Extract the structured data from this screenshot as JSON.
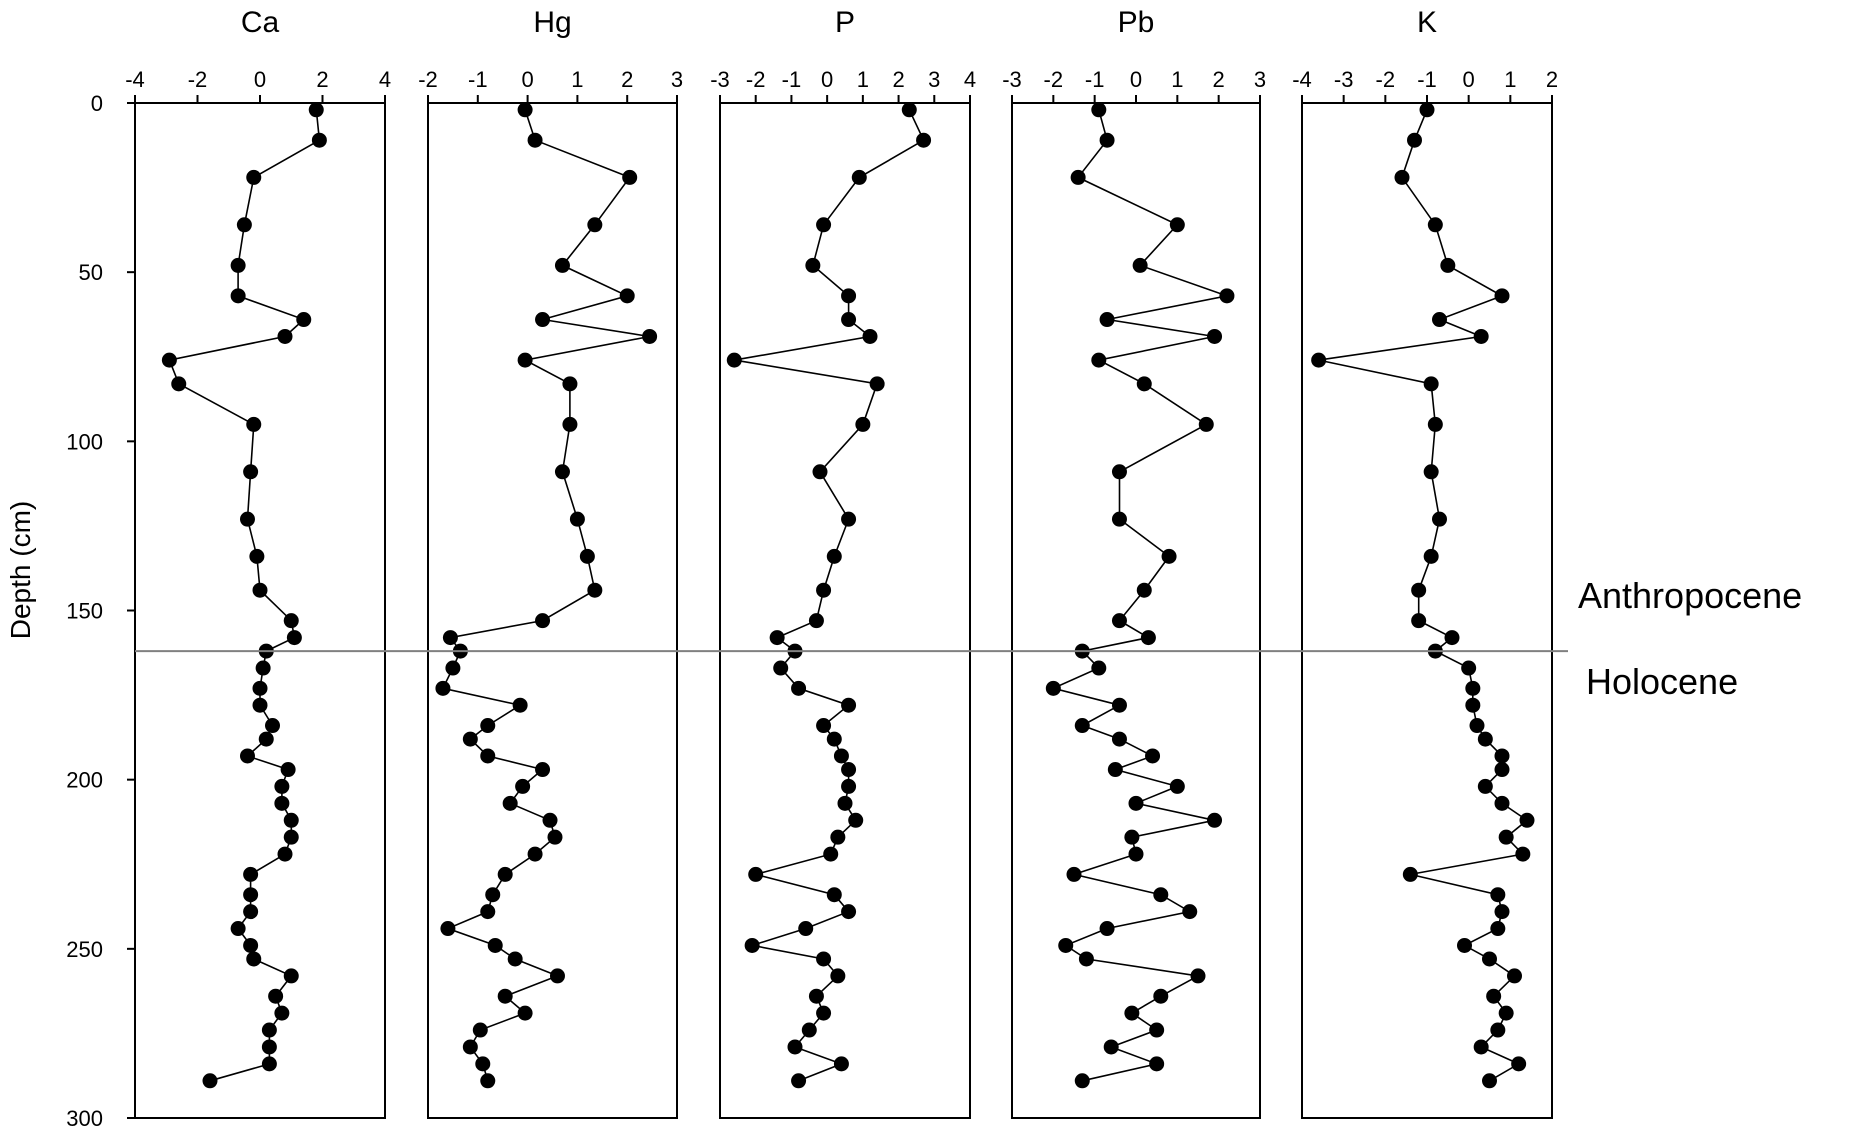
{
  "chart_data": {
    "type": "line",
    "ylabel": "Depth (cm)",
    "ylim": [
      0,
      300
    ],
    "y_ticks": [
      0,
      50,
      100,
      150,
      200,
      250,
      300
    ],
    "y_inverted": true,
    "depths": [
      2,
      11,
      22,
      36,
      48,
      57,
      64,
      69,
      76,
      83,
      95,
      109,
      123,
      134,
      144,
      153,
      158,
      162,
      167,
      173,
      178,
      184,
      188,
      193,
      197,
      202,
      207,
      212,
      217,
      222,
      228,
      234,
      239,
      244,
      249,
      253,
      258,
      264,
      269,
      274,
      279,
      284,
      289
    ],
    "annotations": {
      "boundary_depth": 162,
      "above": "Anthropocene",
      "below": "Holocene"
    },
    "panels": [
      {
        "title": "Ca",
        "xlim": [
          -4,
          4
        ],
        "x_ticks": [
          "-4",
          "-2",
          "0",
          "2",
          "4"
        ],
        "x_tick_values": [
          -4,
          -2,
          0,
          2,
          4
        ],
        "points": [
          [
            1.8,
            2
          ],
          [
            1.9,
            11
          ],
          [
            -0.2,
            22
          ],
          [
            -0.5,
            36
          ],
          [
            -0.7,
            48
          ],
          [
            -0.7,
            57
          ],
          [
            1.4,
            64
          ],
          [
            0.8,
            69
          ],
          [
            -2.9,
            76
          ],
          [
            -2.6,
            83
          ],
          [
            -0.2,
            95
          ],
          [
            -0.3,
            109
          ],
          [
            -0.4,
            123
          ],
          [
            -0.1,
            134
          ],
          [
            0.0,
            144
          ],
          [
            1.0,
            153
          ],
          [
            1.1,
            158
          ],
          [
            0.2,
            162
          ],
          [
            0.1,
            167
          ],
          [
            0.0,
            173
          ],
          [
            0.0,
            178
          ],
          [
            0.4,
            184
          ],
          [
            0.2,
            188
          ],
          [
            -0.4,
            193
          ],
          [
            0.9,
            197
          ],
          [
            0.7,
            202
          ],
          [
            0.7,
            207
          ],
          [
            1.0,
            212
          ],
          [
            1.0,
            217
          ],
          [
            0.8,
            222
          ],
          [
            -0.3,
            228
          ],
          [
            -0.3,
            234
          ],
          [
            -0.3,
            239
          ],
          [
            -0.7,
            244
          ],
          [
            -0.3,
            249
          ],
          [
            -0.2,
            253
          ],
          [
            1.0,
            258
          ],
          [
            0.5,
            264
          ],
          [
            0.7,
            269
          ],
          [
            0.3,
            274
          ],
          [
            0.3,
            279
          ],
          [
            0.3,
            284
          ],
          [
            -1.6,
            289
          ]
        ]
      },
      {
        "title": "Hg",
        "xlim": [
          -2,
          3
        ],
        "x_ticks": [
          "-2",
          "-1",
          "0",
          "1",
          "2",
          "3"
        ],
        "x_tick_values": [
          -2,
          -1,
          0,
          1,
          2,
          3
        ],
        "points": [
          [
            -0.05,
            2
          ],
          [
            0.15,
            11
          ],
          [
            2.05,
            22
          ],
          [
            1.35,
            36
          ],
          [
            0.7,
            48
          ],
          [
            2.0,
            57
          ],
          [
            0.3,
            64
          ],
          [
            2.45,
            69
          ],
          [
            -0.05,
            76
          ],
          [
            0.85,
            83
          ],
          [
            0.85,
            95
          ],
          [
            0.7,
            109
          ],
          [
            1.0,
            123
          ],
          [
            1.2,
            134
          ],
          [
            1.35,
            144
          ],
          [
            0.3,
            153
          ],
          [
            -1.55,
            158
          ],
          [
            -1.35,
            162
          ],
          [
            -1.5,
            167
          ],
          [
            -1.7,
            173
          ],
          [
            -0.15,
            178
          ],
          [
            -0.8,
            184
          ],
          [
            -1.15,
            188
          ],
          [
            -0.8,
            193
          ],
          [
            0.3,
            197
          ],
          [
            -0.1,
            202
          ],
          [
            -0.35,
            207
          ],
          [
            0.45,
            212
          ],
          [
            0.55,
            217
          ],
          [
            0.15,
            222
          ],
          [
            -0.45,
            228
          ],
          [
            -0.7,
            234
          ],
          [
            -0.8,
            239
          ],
          [
            -1.6,
            244
          ],
          [
            -0.65,
            249
          ],
          [
            -0.25,
            253
          ],
          [
            0.6,
            258
          ],
          [
            -0.45,
            264
          ],
          [
            -0.05,
            269
          ],
          [
            -0.95,
            274
          ],
          [
            -1.15,
            279
          ],
          [
            -0.9,
            284
          ],
          [
            -0.8,
            289
          ]
        ]
      },
      {
        "title": "P",
        "xlim": [
          -3,
          4
        ],
        "x_ticks": [
          "-3",
          "-2",
          "-1",
          "0",
          "1",
          "2",
          "3",
          "4"
        ],
        "x_tick_values": [
          -3,
          -2,
          -1,
          0,
          1,
          2,
          3,
          4
        ],
        "points": [
          [
            2.3,
            2
          ],
          [
            2.7,
            11
          ],
          [
            0.9,
            22
          ],
          [
            -0.1,
            36
          ],
          [
            -0.4,
            48
          ],
          [
            0.6,
            57
          ],
          [
            0.6,
            64
          ],
          [
            1.2,
            69
          ],
          [
            -2.6,
            76
          ],
          [
            1.4,
            83
          ],
          [
            1.0,
            95
          ],
          [
            -0.2,
            109
          ],
          [
            0.6,
            123
          ],
          [
            0.2,
            134
          ],
          [
            -0.1,
            144
          ],
          [
            -0.3,
            153
          ],
          [
            -1.4,
            158
          ],
          [
            -0.9,
            162
          ],
          [
            -1.3,
            167
          ],
          [
            -0.8,
            173
          ],
          [
            0.6,
            178
          ],
          [
            -0.1,
            184
          ],
          [
            0.2,
            188
          ],
          [
            0.4,
            193
          ],
          [
            0.6,
            197
          ],
          [
            0.6,
            202
          ],
          [
            0.5,
            207
          ],
          [
            0.8,
            212
          ],
          [
            0.3,
            217
          ],
          [
            0.1,
            222
          ],
          [
            -2.0,
            228
          ],
          [
            0.2,
            234
          ],
          [
            0.6,
            239
          ],
          [
            -0.6,
            244
          ],
          [
            -2.1,
            249
          ],
          [
            -0.1,
            253
          ],
          [
            0.3,
            258
          ],
          [
            -0.3,
            264
          ],
          [
            -0.1,
            269
          ],
          [
            -0.5,
            274
          ],
          [
            -0.9,
            279
          ],
          [
            0.4,
            284
          ],
          [
            -0.8,
            289
          ]
        ]
      },
      {
        "title": "Pb",
        "xlim": [
          -3,
          3
        ],
        "x_ticks": [
          "-3",
          "-2",
          "-1",
          "0",
          "1",
          "2",
          "3"
        ],
        "x_tick_values": [
          -3,
          -2,
          -1,
          0,
          1,
          2,
          3
        ],
        "points": [
          [
            -0.9,
            2
          ],
          [
            -0.7,
            11
          ],
          [
            -1.4,
            22
          ],
          [
            1.0,
            36
          ],
          [
            0.1,
            48
          ],
          [
            2.2,
            57
          ],
          [
            -0.7,
            64
          ],
          [
            1.9,
            69
          ],
          [
            -0.9,
            76
          ],
          [
            0.2,
            83
          ],
          [
            1.7,
            95
          ],
          [
            -0.4,
            109
          ],
          [
            -0.4,
            123
          ],
          [
            0.8,
            134
          ],
          [
            0.2,
            144
          ],
          [
            -0.4,
            153
          ],
          [
            0.3,
            158
          ],
          [
            -1.3,
            162
          ],
          [
            -0.9,
            167
          ],
          [
            -2.0,
            173
          ],
          [
            -0.4,
            178
          ],
          [
            -1.3,
            184
          ],
          [
            -0.4,
            188
          ],
          [
            0.4,
            193
          ],
          [
            -0.5,
            197
          ],
          [
            1.0,
            202
          ],
          [
            0.0,
            207
          ],
          [
            1.9,
            212
          ],
          [
            -0.1,
            217
          ],
          [
            0.0,
            222
          ],
          [
            -1.5,
            228
          ],
          [
            0.6,
            234
          ],
          [
            1.3,
            239
          ],
          [
            -0.7,
            244
          ],
          [
            -1.7,
            249
          ],
          [
            -1.2,
            253
          ],
          [
            1.5,
            258
          ],
          [
            0.6,
            264
          ],
          [
            -0.1,
            269
          ],
          [
            0.5,
            274
          ],
          [
            -0.6,
            279
          ],
          [
            0.5,
            284
          ],
          [
            -1.3,
            289
          ]
        ]
      },
      {
        "title": "K",
        "xlim": [
          -4,
          2
        ],
        "x_ticks": [
          "-4",
          "-3",
          "-2",
          "-1",
          "0",
          "1",
          "2"
        ],
        "x_tick_values": [
          -4,
          -3,
          -2,
          -1,
          0,
          1,
          2
        ],
        "points": [
          [
            -1.0,
            2
          ],
          [
            -1.3,
            11
          ],
          [
            -1.6,
            22
          ],
          [
            -0.8,
            36
          ],
          [
            -0.5,
            48
          ],
          [
            0.8,
            57
          ],
          [
            -0.7,
            64
          ],
          [
            0.3,
            69
          ],
          [
            -3.6,
            76
          ],
          [
            -0.9,
            83
          ],
          [
            -0.8,
            95
          ],
          [
            -0.9,
            109
          ],
          [
            -0.7,
            123
          ],
          [
            -0.9,
            134
          ],
          [
            -1.2,
            144
          ],
          [
            -1.2,
            153
          ],
          [
            -0.4,
            158
          ],
          [
            -0.8,
            162
          ],
          [
            0.0,
            167
          ],
          [
            0.1,
            173
          ],
          [
            0.1,
            178
          ],
          [
            0.2,
            184
          ],
          [
            0.4,
            188
          ],
          [
            0.8,
            193
          ],
          [
            0.8,
            197
          ],
          [
            0.4,
            202
          ],
          [
            0.8,
            207
          ],
          [
            1.4,
            212
          ],
          [
            0.9,
            217
          ],
          [
            1.3,
            222
          ],
          [
            -1.4,
            228
          ],
          [
            0.7,
            234
          ],
          [
            0.8,
            239
          ],
          [
            0.7,
            244
          ],
          [
            -0.1,
            249
          ],
          [
            0.5,
            253
          ],
          [
            1.1,
            258
          ],
          [
            0.6,
            264
          ],
          [
            0.9,
            269
          ],
          [
            0.7,
            274
          ],
          [
            0.3,
            279
          ],
          [
            1.2,
            284
          ],
          [
            0.5,
            289
          ]
        ]
      }
    ]
  }
}
